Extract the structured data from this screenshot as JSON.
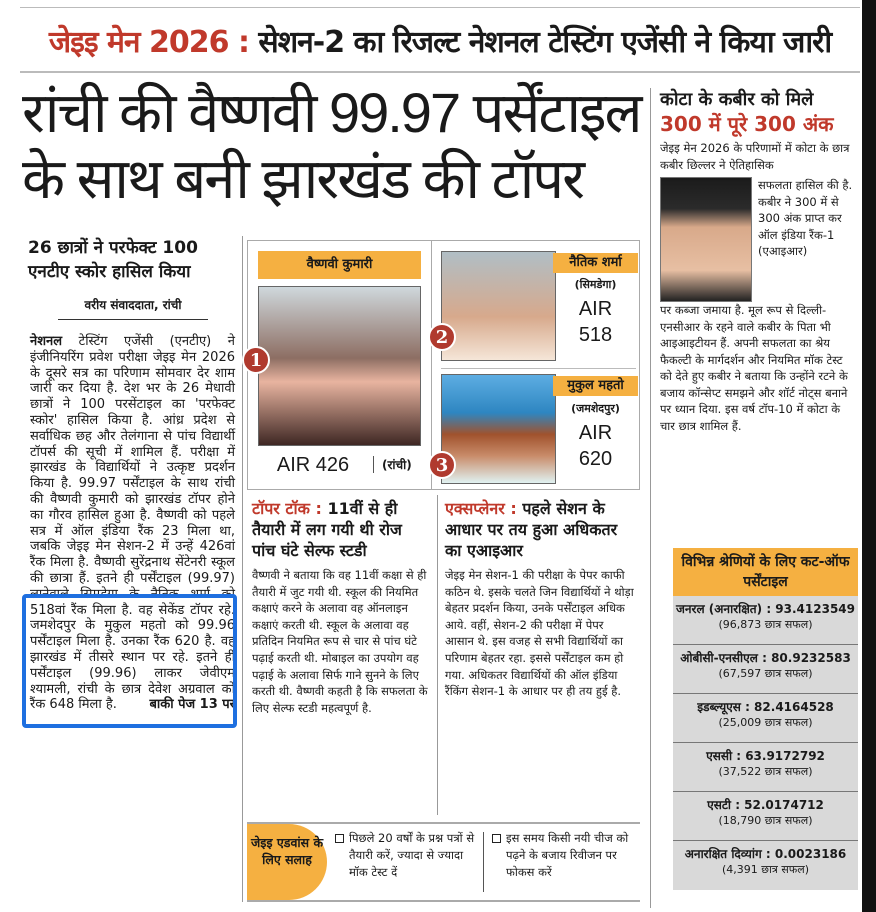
{
  "kicker": {
    "label": "जेइइ मेन 2026 :",
    "text": " सेशन-2 का रिजल्ट नेशनल टेस्टिंग एजेंसी ने किया जारी"
  },
  "headline": {
    "line1": "रांची की वैष्णवी 99.97 पर्सेंटाइल",
    "line2": "के साथ बनी झारखंड की टॉपर"
  },
  "lead_story": {
    "subhead": "26 छात्रों ने परफेक्ट 100 एनटीए स्कोर हासिल किया",
    "byline": "वरीय संवाददाता, रांची",
    "lead_word": "नेशनल",
    "body": " टेस्टिंग एजेंसी (एनटीए) ने इंजीनियरिंग प्रवेश परीक्षा जेइइ मेन 2026 के दूसरे सत्र का परिणाम सोमवार देर शाम जारी कर दिया है. देश भर के 26 मेधावी छात्रों ने 100 परसेंटाइल का 'परफेक्ट स्कोर' हासिल किया है. आंध्र प्रदेश से सर्वाधिक छह और तेलंगाना से पांच विद्यार्थी टॉपर्स की सूची में शामिल हैं. परीक्षा में झारखंड के विद्यार्थियों ने उत्कृष्ट प्रदर्शन किया है. 99.97 पर्सेंटाइल के साथ रांची की वैष्णवी कुमारी को झारखंड टॉपर होने का गौरव हासिल हुआ है. वैष्णवी को पहले सत्र में ऑल इंडिया रैंक 23 मिला था, जबकि जेइइ मेन सेशन-2 में उन्हें 426वां रैंक मिला है. वैष्णवी सुरेंद्रनाथ सेंटेनरी स्कूल की छात्रा हैं. इतने ही पर्सेंटाइल (99.97) लानेवाले सिमडेगा के नैतिक शर्मा को 518वां रैंक मिला है. वह सेकेंड टॉपर रहे. जमशेदपुर के मुकुल महतो को 99.96 पर्सेंटाइल मिला है. उनका रैंक 620 है. वह झारखंड में तीसरे स्थान पर रहे. इतने ही पर्सेंटाइल (99.96) लाकर जेवीएम श्यामली, रांची के छात्र देवेश अग्रवाल को रैंक 648 मिला है.",
    "continued": "बाकी पेज 13 पर",
    "highlight_color": "#1e6fe0"
  },
  "toppers": [
    {
      "rank": "1",
      "name": "वैष्णवी कुमारी",
      "city": "(रांची)",
      "air": "AIR 426"
    },
    {
      "rank": "2",
      "name": "नैतिक शर्मा",
      "city": "(सिमडेगा)",
      "air_label": "AIR",
      "air": "518"
    },
    {
      "rank": "3",
      "name": "मुकुल महतो",
      "city": "(जमशेदपुर)",
      "air_label": "AIR",
      "air": "620"
    }
  ],
  "topper_talk": {
    "label": "टॉपर टॉक :",
    "title": " 11वीं से ही तैयारी में लग गयी थी रोज पांच घंटे सेल्फ स्टडी",
    "body": "वैष्णवी ने बताया कि वह 11वीं कक्षा से ही तैयारी में जुट गयी थी. स्कूल की नियमित कक्षाएं करने के अलावा वह ऑनलाइन कक्षाएं करती थी. स्कूल के अलावा वह प्रतिदिन नियमित रूप से चार से पांच घंटे पढ़ाई करती थी. मोबाइल का उपयोग वह पढ़ाई के अलावा सिर्फ गाने सुनने के लिए करती थी. वैष्णवी कहती है कि सफलता के लिए सेल्फ स्टडी महत्वपूर्ण है."
  },
  "explainer": {
    "label": "एक्सप्लेनर :",
    "title": " पहले सेशन के आधार पर तय हुआ अधिकतर का एआइआर",
    "body": "जेइइ मेन सेशन-1 की परीक्षा के पेपर काफी कठिन थे. इसके चलते जिन विद्यार्थियों ने थोड़ा बेहतर प्रदर्शन किया, उनके पर्सेंटाइल अधिक आये. वहीं, सेशन-2 की परीक्षा में पेपर आसान थे. इस वजह से सभी विद्यार्थियों का परिणाम बेहतर रहा. इससे पर्सेंटाइल कम हो गया. अधिकतर विद्यार्थियों की ऑल इंडिया रैंकिंग सेशन-1 के आधार पर ही तय हुई है."
  },
  "advice": {
    "label": "जेइइ एडवांस के लिए सलाह",
    "tips": [
      "पिछले 20 वर्षों के प्रश्न पत्रों से तैयारी करें, ज्यादा से ज्यादा मॉक टेस्ट दें",
      "इस समय किसी नयी चीज को पढ़ने के बजाय रिवीजन पर फोकस करें"
    ]
  },
  "kota_story": {
    "title1": "कोटा के कबीर को मिले",
    "title2": "300 में पूरे 300 अंक",
    "intro": "जेइइ मेन 2026 के परिणामों में कोटा के छात्र कबीर छिल्लर ने ऐतिहासिक",
    "beside_photo": "सफलता हासिल की है. कबीर ने 300 में से 300 अंक प्राप्त कर ऑल इंडिया रैंक-1 (एआइआर)",
    "body": "पर कब्जा जमाया है. मूल रूप से दिल्ली-एनसीआर के रहने वाले कबीर के पिता भी आइआइटीयन हैं. अपनी सफलता का श्रेय फैकल्टी के मार्गदर्शन और नियमित मॉक टेस्ट को देते हुए कबीर ने बताया कि उन्होंने रटने के बजाय कॉन्सेप्ट समझने और शॉर्ट नोट्स बनाने पर ध्यान दिया. इस वर्ष टॉप-10 में कोटा के चार छात्र शामिल हैं."
  },
  "cutoff": {
    "title": "विभिन्न श्रेणियों के लिए कट-ऑफ पर्सेंटाइल",
    "rows": [
      {
        "category": "जनरल (अनारक्षित) : 93.4123549",
        "passed": "(96,873 छात्र सफल)"
      },
      {
        "category": "ओबीसी-एनसीएल : 80.9232583",
        "passed": "(67,597 छात्र सफल)"
      },
      {
        "category": "इडब्ल्यूएस : 82.4164528",
        "passed": "(25,009 छात्र सफल)"
      },
      {
        "category": "एससी : 63.9172792",
        "passed": "(37,522 छात्र सफल)"
      },
      {
        "category": "एसटी : 52.0174712",
        "passed": "(18,790 छात्र सफल)"
      },
      {
        "category": "अनारक्षित दिव्यांग : 0.0023186",
        "passed": "(4,391 छात्र सफल)"
      }
    ]
  }
}
